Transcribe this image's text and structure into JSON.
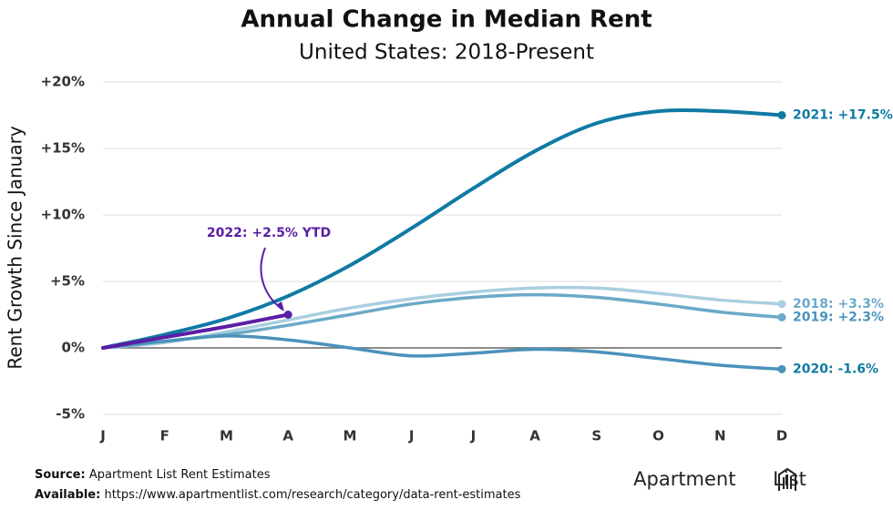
{
  "chart_data": {
    "type": "line",
    "title": "Annual Change in Median Rent",
    "subtitle": "United States: 2018-Present",
    "y_label": "Rent Growth Since January",
    "categories": [
      "J",
      "F",
      "M",
      "A",
      "M",
      "J",
      "J",
      "A",
      "S",
      "O",
      "N",
      "D"
    ],
    "ylim": [
      -5,
      20
    ],
    "yticks": [
      {
        "value": -5,
        "label": "-5%"
      },
      {
        "value": 0,
        "label": "0%"
      },
      {
        "value": 5,
        "label": "+5%"
      },
      {
        "value": 10,
        "label": "+10%"
      },
      {
        "value": 15,
        "label": "+15%"
      },
      {
        "value": 20,
        "label": "+20%"
      }
    ],
    "grid": true,
    "series": [
      {
        "name": "2018: +3.3%",
        "color": "#a9cfe0",
        "values": [
          0,
          0.4,
          1.2,
          2.1,
          3.0,
          3.7,
          4.2,
          4.5,
          4.5,
          4.1,
          3.6,
          3.3
        ]
      },
      {
        "name": "2019: +2.3%",
        "color": "#6ba9c8",
        "values": [
          0,
          0.5,
          1.0,
          1.7,
          2.5,
          3.3,
          3.8,
          4.0,
          3.8,
          3.3,
          2.7,
          2.3
        ]
      },
      {
        "name": "2020: -1.6%",
        "color": "#4b92bb",
        "values": [
          0,
          0.5,
          0.9,
          0.6,
          0.0,
          -0.6,
          -0.4,
          -0.1,
          -0.3,
          -0.8,
          -1.3,
          -1.6
        ]
      },
      {
        "name": "2021: +17.5%",
        "color": "#0f7aa3",
        "values": [
          0,
          1.0,
          2.2,
          3.9,
          6.2,
          9.0,
          12.0,
          14.8,
          16.9,
          17.8,
          17.8,
          17.5
        ]
      },
      {
        "name": "2022: +2.5% YTD",
        "color": "#5a1ea6",
        "values": [
          0,
          0.8,
          1.6,
          2.5,
          null,
          null,
          null,
          null,
          null,
          null,
          null,
          null
        ]
      }
    ]
  },
  "footer": {
    "source_label": "Source:",
    "source": "Apartment List Rent Estimates",
    "available_label": "Available:",
    "available": "https://www.apartmentlist.com/research/category/data-rent-estimates",
    "logo": "Apartment List"
  }
}
